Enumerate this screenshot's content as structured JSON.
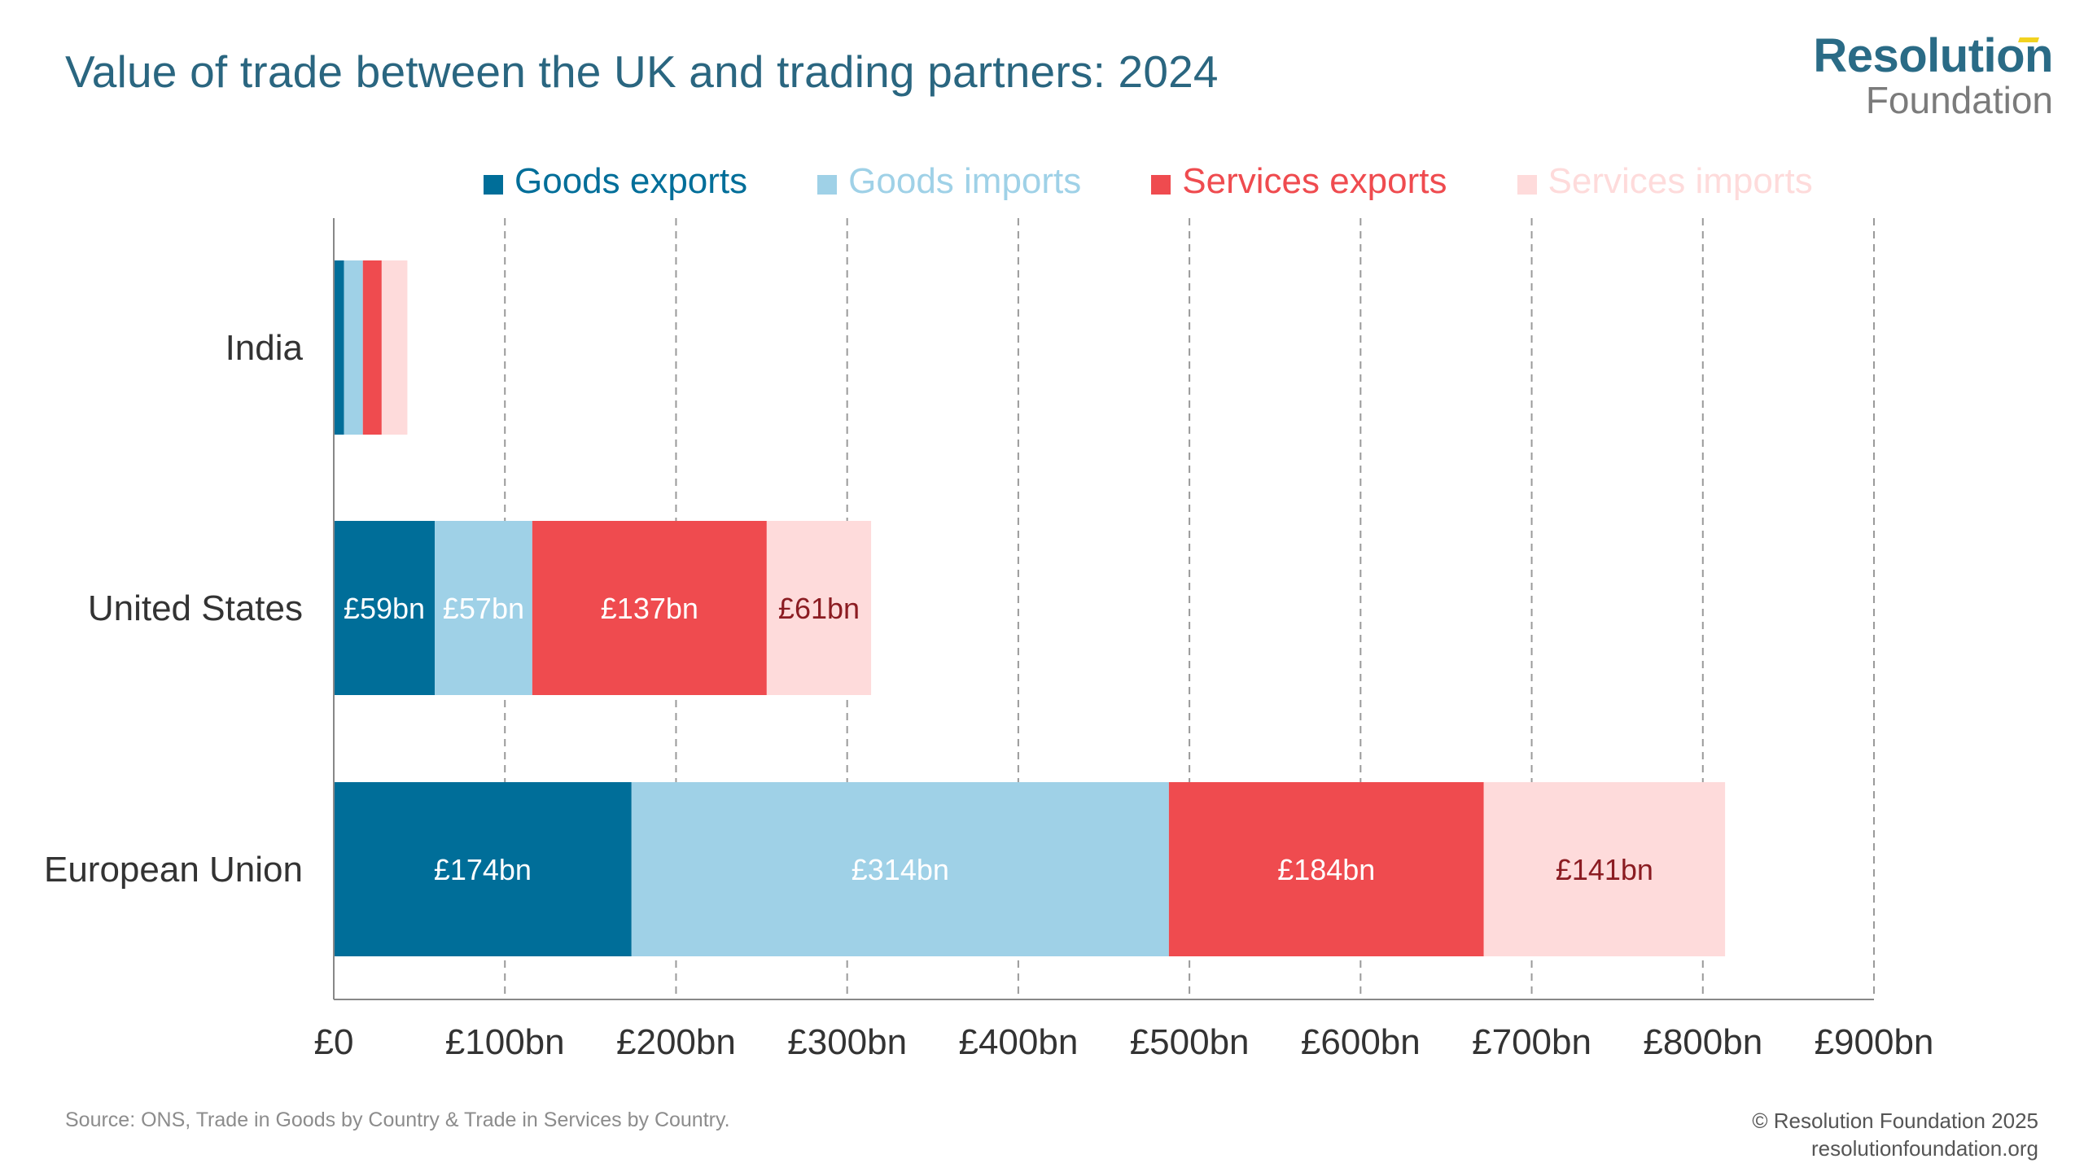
{
  "title": "Value of trade between the UK and trading partners: 2024",
  "logo": {
    "line1": "Resolution",
    "line2": "Foundation"
  },
  "colors": {
    "goods_exports": "#006e99",
    "goods_imports": "#9fd1e7",
    "services_exports": "#ef4b4f",
    "services_imports": "#fedbdb",
    "title": "#2a6680",
    "grid": "#9a9a9a"
  },
  "chart_data": {
    "type": "bar",
    "orientation": "horizontal",
    "stacked": true,
    "categories": [
      "India",
      "United States",
      "European Union"
    ],
    "series": [
      {
        "name": "Goods exports",
        "values": [
          6,
          59,
          174
        ],
        "labels": [
          "",
          "£59bn",
          "£174bn"
        ],
        "color": "#006e99",
        "label_color": "#ffffff"
      },
      {
        "name": "Goods imports",
        "values": [
          11,
          57,
          314
        ],
        "labels": [
          "",
          "£57bn",
          "£314bn"
        ],
        "color": "#9fd1e7",
        "label_color": "#ffffff"
      },
      {
        "name": "Services exports",
        "values": [
          11,
          137,
          184
        ],
        "labels": [
          "",
          "£137bn",
          "£184bn"
        ],
        "color": "#ef4b4f",
        "label_color": "#ffffff"
      },
      {
        "name": "Services imports",
        "values": [
          15,
          61,
          141
        ],
        "labels": [
          "",
          "£61bn",
          "£141bn"
        ],
        "color": "#fedbdb",
        "label_color": "#8b1c22"
      }
    ],
    "xlim": [
      0,
      900
    ],
    "xticks": [
      0,
      100,
      200,
      300,
      400,
      500,
      600,
      700,
      800,
      900
    ],
    "xtick_labels": [
      "£0",
      "£100bn",
      "£200bn",
      "£300bn",
      "£400bn",
      "£500bn",
      "£600bn",
      "£700bn",
      "£800bn",
      "£900bn"
    ],
    "xlabel": "",
    "ylabel": "",
    "grid": "vertical dashed",
    "legend": "top"
  },
  "footer": {
    "source": "Source: ONS, Trade in Goods by Country & Trade in Services by Country.",
    "copyright": "© Resolution Foundation 2025",
    "website": "resolutionfoundation.org"
  }
}
